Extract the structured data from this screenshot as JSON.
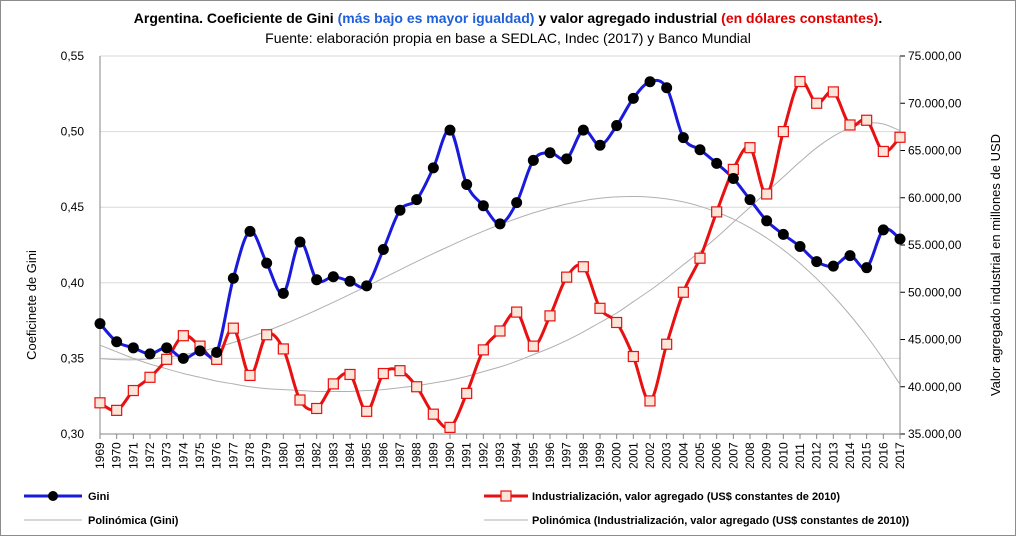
{
  "header": {
    "title_part1": "Argentina. Coeficiente de Gini ",
    "title_part2": "(más bajo es mayor igualdad)",
    "title_part3": " y valor agregado industrial ",
    "title_part4": "(en dólares constantes)",
    "title_part5": ".",
    "subtitle": "Fuente: elaboración propia en base a SEDLAC, Indec (2017) y Banco Mundial"
  },
  "colors": {
    "gini": "#1a1adc",
    "industrial": "#e81010",
    "trend": "#b0b0b0",
    "marker_fill_industrial": "#fbe4d8"
  },
  "chart_data": {
    "type": "line",
    "title": "Argentina. Coeficiente de Gini (más bajo es mayor igualdad) y valor agregado industrial (en dólares constantes).",
    "subtitle": "Fuente: elaboración propia en base a SEDLAC, Indec (2017) y Banco Mundial",
    "ylabel": "Coeficinete de Gini",
    "y2label": "Valor agregado industrial en millones de USD",
    "ylim": [
      0.3,
      0.55
    ],
    "y2lim": [
      35000,
      75000
    ],
    "yticks": [
      "0,30",
      "0,35",
      "0,40",
      "0,45",
      "0,50",
      "0,55"
    ],
    "y2ticks": [
      "35.000,00",
      "40.000,00",
      "45.000,00",
      "50.000,00",
      "55.000,00",
      "60.000,00",
      "65.000,00",
      "70.000,00",
      "75.000,00"
    ],
    "grid": "horizontal",
    "legend_position": "bottom",
    "x": [
      "1969",
      "1970",
      "1971",
      "1972",
      "1973",
      "1974",
      "1975",
      "1976",
      "1977",
      "1978",
      "1979",
      "1980",
      "1981",
      "1982",
      "1983",
      "1984",
      "1985",
      "1986",
      "1987",
      "1988",
      "1989",
      "1990",
      "1991",
      "1992",
      "1993",
      "1994",
      "1995",
      "1996",
      "1997",
      "1998",
      "1999",
      "2000",
      "2001",
      "2002",
      "2003",
      "2004",
      "2005",
      "2006",
      "2007",
      "2008",
      "2009",
      "2010",
      "2011",
      "2012",
      "2013",
      "2014",
      "2015",
      "2016",
      "2017"
    ],
    "series": [
      {
        "name": "Gini",
        "axis": "left",
        "values": [
          0.373,
          0.361,
          0.357,
          0.353,
          0.357,
          0.35,
          0.355,
          0.354,
          0.403,
          0.434,
          0.413,
          0.393,
          0.427,
          0.402,
          0.404,
          0.401,
          0.398,
          0.422,
          0.448,
          0.455,
          0.476,
          0.501,
          0.465,
          0.451,
          0.439,
          0.453,
          0.481,
          0.486,
          0.482,
          0.501,
          0.491,
          0.504,
          0.522,
          0.533,
          0.529,
          0.496,
          0.488,
          0.479,
          0.469,
          0.455,
          0.441,
          0.432,
          0.424,
          0.414,
          0.411,
          0.418,
          0.41,
          0.435,
          0.429
        ]
      },
      {
        "name": "Industrialización, valor agregado (US$ constantes de 2010)",
        "axis": "right",
        "values": [
          38300,
          37500,
          39600,
          41000,
          42900,
          45400,
          44300,
          42900,
          46200,
          41200,
          45500,
          44000,
          38600,
          37700,
          40300,
          41300,
          37400,
          41400,
          41700,
          40000,
          37100,
          35700,
          39300,
          43900,
          45900,
          47900,
          44300,
          47500,
          51600,
          52700,
          48300,
          46800,
          43200,
          38500,
          44500,
          50000,
          53600,
          58500,
          63000,
          65300,
          60400,
          67000,
          72300,
          70000,
          71200,
          67700,
          68200,
          64900,
          66400
        ]
      },
      {
        "name": "Polinómica (Gini)",
        "type": "trendline",
        "axis": "left",
        "values": [
          0.3499,
          0.3492,
          0.3491,
          0.3496,
          0.3507,
          0.3524,
          0.3546,
          0.3573,
          0.3605,
          0.3641,
          0.3681,
          0.3724,
          0.3771,
          0.382,
          0.3871,
          0.3924,
          0.3977,
          0.4031,
          0.4086,
          0.414,
          0.4193,
          0.4244,
          0.4294,
          0.4341,
          0.4385,
          0.4425,
          0.4462,
          0.4494,
          0.4521,
          0.4543,
          0.4559,
          0.4568,
          0.4571,
          0.4567,
          0.4555,
          0.4535,
          0.4506,
          0.4468,
          0.4421,
          0.4364,
          0.4296,
          0.4218,
          0.4128,
          0.4027,
          0.3913,
          0.3787,
          0.3648,
          0.3495,
          0.3328
        ]
      },
      {
        "name": "Polinómica (Industrialización, valor agregado (US$ constantes de 2010))",
        "type": "trendline",
        "axis": "right",
        "values": [
          44400,
          43700,
          43000,
          42400,
          41900,
          41400,
          41000,
          40600,
          40300,
          40000,
          39800,
          39700,
          39600,
          39500,
          39500,
          39500,
          39600,
          39700,
          39900,
          40100,
          40400,
          40700,
          41100,
          41600,
          42100,
          42700,
          43400,
          44100,
          44900,
          45800,
          46800,
          47800,
          49000,
          50200,
          51500,
          52900,
          54300,
          55800,
          57400,
          59000,
          60600,
          62200,
          63800,
          65300,
          66500,
          67400,
          67900,
          67800,
          67100
        ]
      }
    ]
  },
  "legend": {
    "item1": "Gini",
    "item2": "Industrialización, valor agregado (US$ constantes de 2010)",
    "item3": "Polinómica (Gini)",
    "item4": "Polinómica (Industrialización, valor agregado (US$ constantes de 2010))"
  }
}
